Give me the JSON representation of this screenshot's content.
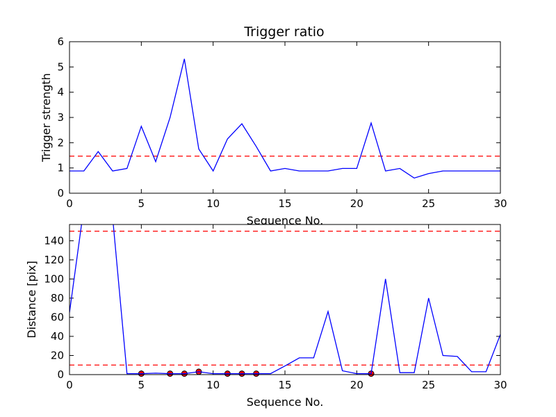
{
  "colors": {
    "series": "#0000ff",
    "threshold": "#ff0000",
    "marker_fill": "#ff0000",
    "marker_edge": "#000000",
    "frame": "#000000"
  },
  "chart_data": [
    {
      "type": "line",
      "title": "Trigger ratio",
      "xlabel": "Sequence No.",
      "ylabel": "Trigger strength",
      "xlim": [
        0,
        30
      ],
      "ylim": [
        0,
        6
      ],
      "xticks": [
        "0",
        "5",
        "10",
        "15",
        "20",
        "25",
        "30"
      ],
      "yticks": [
        "0",
        "1",
        "2",
        "3",
        "4",
        "5",
        "6"
      ],
      "grid": false,
      "legend": "none",
      "x": [
        0,
        1,
        2,
        3,
        4,
        5,
        6,
        7,
        8,
        9,
        10,
        11,
        12,
        13,
        14,
        15,
        16,
        17,
        18,
        19,
        20,
        21,
        22,
        23,
        24,
        25,
        26,
        27,
        28,
        29,
        30
      ],
      "series": [
        {
          "style": "solid",
          "values": [
            0.88,
            0.88,
            1.65,
            0.88,
            0.98,
            2.65,
            1.25,
            3.0,
            5.32,
            1.75,
            0.88,
            2.15,
            2.75,
            1.85,
            0.88,
            0.98,
            0.88,
            0.88,
            0.88,
            0.98,
            0.98,
            2.78,
            0.88,
            0.98,
            0.6,
            0.78,
            0.88,
            0.88,
            0.88,
            0.88,
            0.88
          ]
        }
      ],
      "hlines": [
        1.47
      ]
    },
    {
      "type": "line",
      "title": "",
      "xlabel": "Sequence No.",
      "ylabel": "Distance [pix]",
      "xlim": [
        0,
        30
      ],
      "ylim": [
        0,
        157
      ],
      "xticks": [
        "0",
        "5",
        "10",
        "15",
        "20",
        "25",
        "30"
      ],
      "yticks": [
        "0",
        "20",
        "40",
        "60",
        "80",
        "100",
        "120",
        "140"
      ],
      "grid": false,
      "legend": "none",
      "x": [
        0,
        1,
        2,
        3,
        4,
        5,
        6,
        7,
        8,
        9,
        10,
        11,
        12,
        13,
        14,
        15,
        16,
        17,
        18,
        19,
        20,
        21,
        22,
        23,
        24,
        25,
        26,
        27,
        28,
        29,
        30
      ],
      "series": [
        {
          "style": "solid",
          "values": [
            65,
            175,
            175,
            165,
            1,
            1,
            1.5,
            1,
            1,
            3,
            1,
            1,
            1,
            1,
            1,
            9,
            17.5,
            17.5,
            66,
            4,
            1,
            1,
            100,
            2,
            2,
            80,
            20,
            19,
            3,
            3,
            42
          ]
        }
      ],
      "markers": {
        "x": [
          5,
          7,
          8,
          9,
          11,
          12,
          13,
          21
        ],
        "y": [
          1,
          1,
          1,
          3,
          1,
          1,
          1,
          1
        ]
      },
      "hlines": [
        150,
        10
      ]
    }
  ]
}
